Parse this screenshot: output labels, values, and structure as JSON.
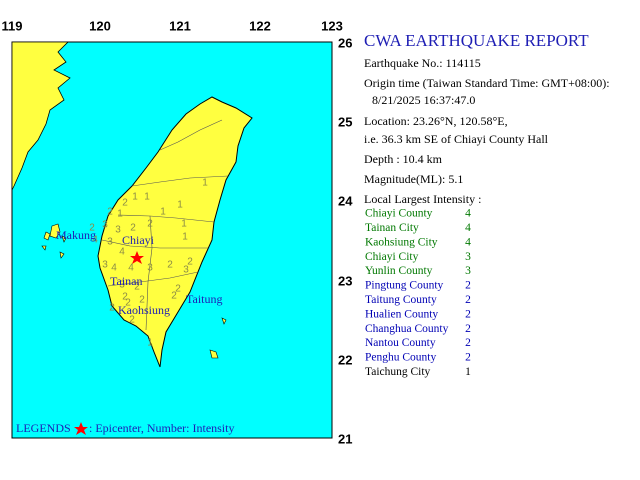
{
  "map": {
    "lon_labels": [
      "119",
      "120",
      "121",
      "122",
      "123"
    ],
    "lat_labels": [
      "26",
      "25",
      "24",
      "23",
      "22",
      "21"
    ],
    "place_labels": [
      "Makung",
      "Chiayi",
      "Tainan",
      "Kaohsiung",
      "Taitung"
    ],
    "stations": [
      1,
      1,
      1,
      1,
      1,
      2,
      2,
      1,
      3,
      3,
      2,
      2,
      1,
      1,
      2,
      4,
      3,
      4,
      4,
      3,
      4,
      3,
      2,
      2,
      3,
      2,
      2,
      3,
      2,
      2,
      2,
      2,
      2,
      2,
      1
    ],
    "legend_title": "LEGENDS",
    "legend_text": ": Epicenter, Number: Intensity"
  },
  "report": {
    "title": "CWA EARTHQUAKE REPORT",
    "lines": [
      "Earthquake No.: 114115",
      "Origin time (Taiwan Standard Time: GMT+08:00):",
      "8/21/2025 16:37:47.0",
      "Location: 23.26°N, 120.58°E,",
      "i.e. 36.3 km SE of Chiayi County Hall",
      "Depth : 10.4 km",
      "Magnitude(ML): 5.1"
    ],
    "intensity_heading": "Local Largest Intensity :",
    "intensities": [
      {
        "place": "Chiayi County",
        "value": 4,
        "color": "#007800"
      },
      {
        "place": "Tainan City",
        "value": 4,
        "color": "#007800"
      },
      {
        "place": "Kaohsiung City",
        "value": 4,
        "color": "#007800"
      },
      {
        "place": "Chiayi City",
        "value": 3,
        "color": "#007800"
      },
      {
        "place": "Yunlin County",
        "value": 3,
        "color": "#007800"
      },
      {
        "place": "Pingtung County",
        "value": 2,
        "color": "#0000b4"
      },
      {
        "place": "Taitung County",
        "value": 2,
        "color": "#0000b4"
      },
      {
        "place": "Hualien County",
        "value": 2,
        "color": "#0000b4"
      },
      {
        "place": "Changhua County",
        "value": 2,
        "color": "#0000b4"
      },
      {
        "place": "Nantou County",
        "value": 2,
        "color": "#0000b4"
      },
      {
        "place": "Penghu County",
        "value": 2,
        "color": "#0000b4"
      },
      {
        "place": "Taichung City",
        "value": 1,
        "color": "#000000"
      }
    ]
  }
}
